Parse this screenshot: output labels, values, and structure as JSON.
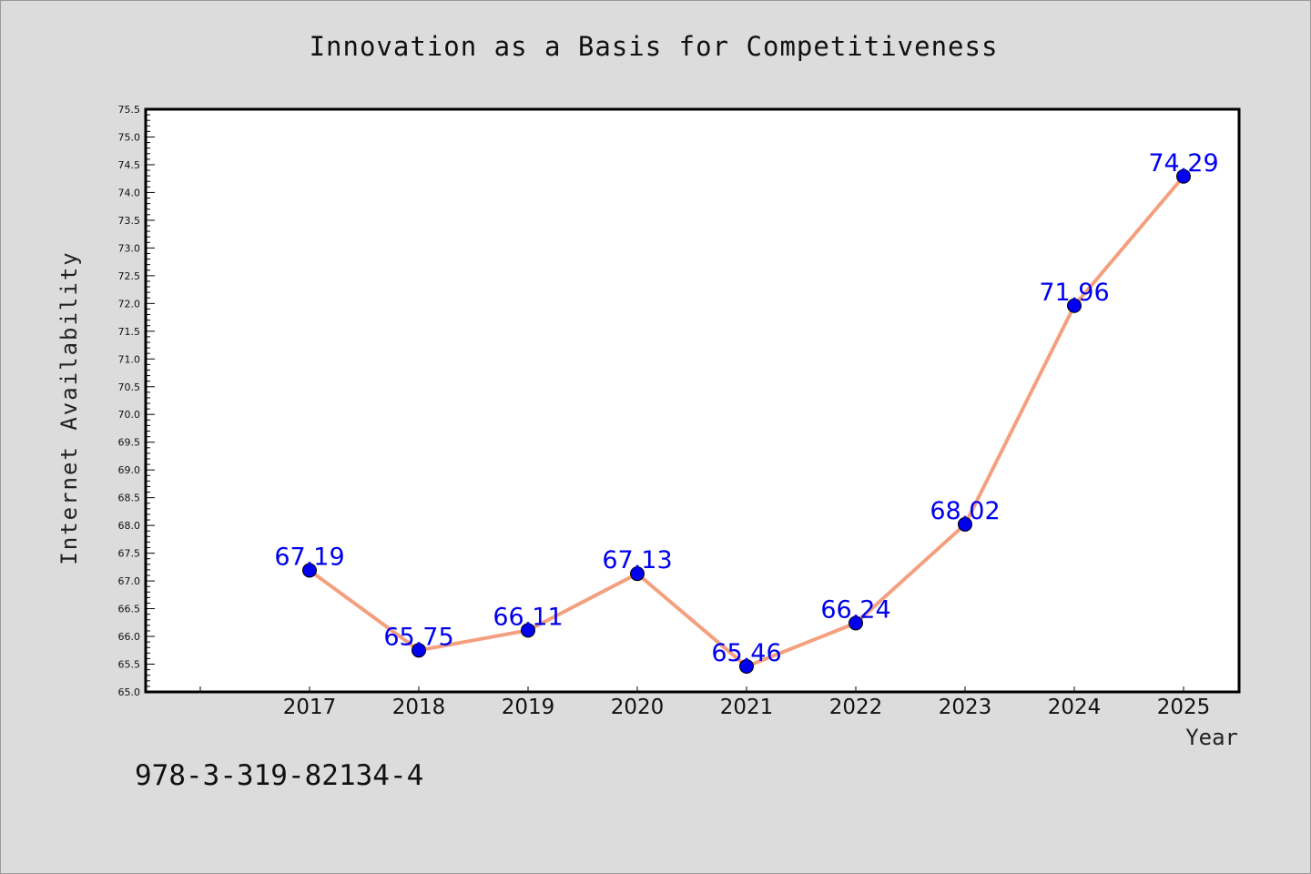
{
  "chart_data": {
    "type": "line",
    "title": "Innovation as a Basis for Competitiveness",
    "xlabel": "Year",
    "ylabel": "Internet Availability",
    "categories": [
      "2017",
      "2018",
      "2019",
      "2020",
      "2021",
      "2022",
      "2023",
      "2024",
      "2025"
    ],
    "series": [
      {
        "values": [
          67.19,
          65.75,
          66.11,
          67.13,
          65.46,
          66.24,
          68.02,
          71.96,
          74.29
        ],
        "labels": [
          "67.19",
          "65.75",
          "66.11",
          "67.13",
          "65.46",
          "66.24",
          "68.02",
          "71.96",
          "74.29"
        ]
      }
    ],
    "ylim": [
      65.0,
      75.5
    ],
    "yticks": [
      "65.0",
      "65.5",
      "66.0",
      "66.5",
      "67.0",
      "67.5",
      "68.0",
      "68.5",
      "69.0",
      "69.5",
      "70.0",
      "70.5",
      "71.0",
      "71.5",
      "72.0",
      "72.5",
      "73.0",
      "73.5",
      "74.0",
      "74.5",
      "75.0",
      "75.5"
    ],
    "grid": false,
    "colors": {
      "line": "#f4a07f",
      "marker": "#0000ee",
      "label": "#0000ee"
    }
  },
  "footer_text": "978-3-319-82134-4"
}
